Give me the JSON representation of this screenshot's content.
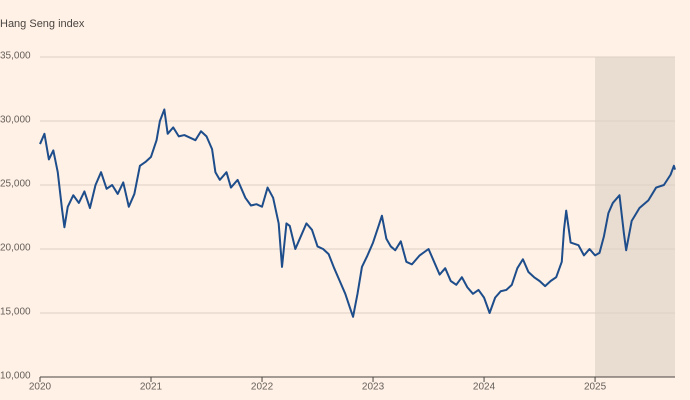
{
  "chart_data": {
    "type": "line",
    "y_label": "Hang Seng index",
    "x": [
      2020.0,
      2020.04,
      2020.08,
      2020.12,
      2020.16,
      2020.2,
      2020.22,
      2020.25,
      2020.3,
      2020.35,
      2020.4,
      2020.45,
      2020.5,
      2020.55,
      2020.6,
      2020.65,
      2020.7,
      2020.75,
      2020.8,
      2020.85,
      2020.9,
      2020.95,
      2021.0,
      2021.05,
      2021.08,
      2021.12,
      2021.15,
      2021.2,
      2021.25,
      2021.3,
      2021.4,
      2021.45,
      2021.5,
      2021.55,
      2021.58,
      2021.62,
      2021.68,
      2021.72,
      2021.78,
      2021.85,
      2021.9,
      2021.95,
      2022.0,
      2022.05,
      2022.1,
      2022.15,
      2022.18,
      2022.22,
      2022.25,
      2022.3,
      2022.35,
      2022.4,
      2022.45,
      2022.5,
      2022.55,
      2022.6,
      2022.65,
      2022.7,
      2022.75,
      2022.8,
      2022.82,
      2022.86,
      2022.9,
      2022.95,
      2023.0,
      2023.05,
      2023.08,
      2023.12,
      2023.16,
      2023.2,
      2023.25,
      2023.3,
      2023.35,
      2023.42,
      2023.5,
      2023.55,
      2023.6,
      2023.65,
      2023.7,
      2023.75,
      2023.8,
      2023.85,
      2023.9,
      2023.95,
      2024.0,
      2024.05,
      2024.1,
      2024.15,
      2024.2,
      2024.25,
      2024.3,
      2024.35,
      2024.4,
      2024.45,
      2024.5,
      2024.55,
      2024.6,
      2024.65,
      2024.7,
      2024.72,
      2024.74,
      2024.78,
      2024.85,
      2024.9,
      2024.95,
      2025.0,
      2025.04,
      2025.08,
      2025.12,
      2025.16,
      2025.22,
      2025.26,
      2025.28,
      2025.33,
      2025.4,
      2025.48,
      2025.55,
      2025.62,
      2025.68,
      2025.71,
      2025.72
    ],
    "series": [
      {
        "name": "Hang Seng index",
        "color": "#1e4d8b",
        "values": [
          28200,
          29000,
          27000,
          27700,
          26000,
          23000,
          21700,
          23300,
          24200,
          23600,
          24500,
          23200,
          25000,
          26000,
          24700,
          25000,
          24300,
          25200,
          23300,
          24300,
          26500,
          26800,
          27200,
          28500,
          30000,
          30900,
          29000,
          29500,
          28800,
          28900,
          28500,
          29200,
          28800,
          27800,
          26000,
          25400,
          26000,
          24800,
          25400,
          24000,
          23400,
          23500,
          23300,
          24800,
          24000,
          22000,
          18600,
          22000,
          21800,
          20000,
          21000,
          22000,
          21500,
          20200,
          20000,
          19600,
          18500,
          17500,
          16500,
          15200,
          14700,
          16500,
          18600,
          19500,
          20500,
          21800,
          22600,
          20800,
          20200,
          19900,
          20600,
          19000,
          18800,
          19500,
          20000,
          19000,
          18000,
          18500,
          17500,
          17200,
          17800,
          17000,
          16500,
          16800,
          16200,
          15000,
          16200,
          16700,
          16800,
          17200,
          18500,
          19200,
          18200,
          17800,
          17500,
          17100,
          17500,
          17800,
          19000,
          21500,
          23000,
          20500,
          20300,
          19500,
          20000,
          19500,
          19700,
          21000,
          22800,
          23600,
          24200,
          21200,
          19900,
          22200,
          23200,
          23800,
          24800,
          25000,
          25800,
          26500,
          26200
        ]
      }
    ],
    "xlim": [
      2020,
      2025.72
    ],
    "xticks": [
      2020,
      2021,
      2022,
      2023,
      2024,
      2025
    ],
    "ylim": [
      10000,
      35000
    ],
    "yticks": [
      {
        "value": 10000,
        "label": "10,000"
      },
      {
        "value": 15000,
        "label": "15,000"
      },
      {
        "value": 20000,
        "label": "20,000"
      },
      {
        "value": 25000,
        "label": "25,000"
      },
      {
        "value": 30000,
        "label": "30,000"
      },
      {
        "value": 35000,
        "label": "35,000"
      }
    ],
    "highlight": [
      2025,
      2025.72
    ],
    "highlight_color": "#e9dcd0",
    "grid": true
  }
}
